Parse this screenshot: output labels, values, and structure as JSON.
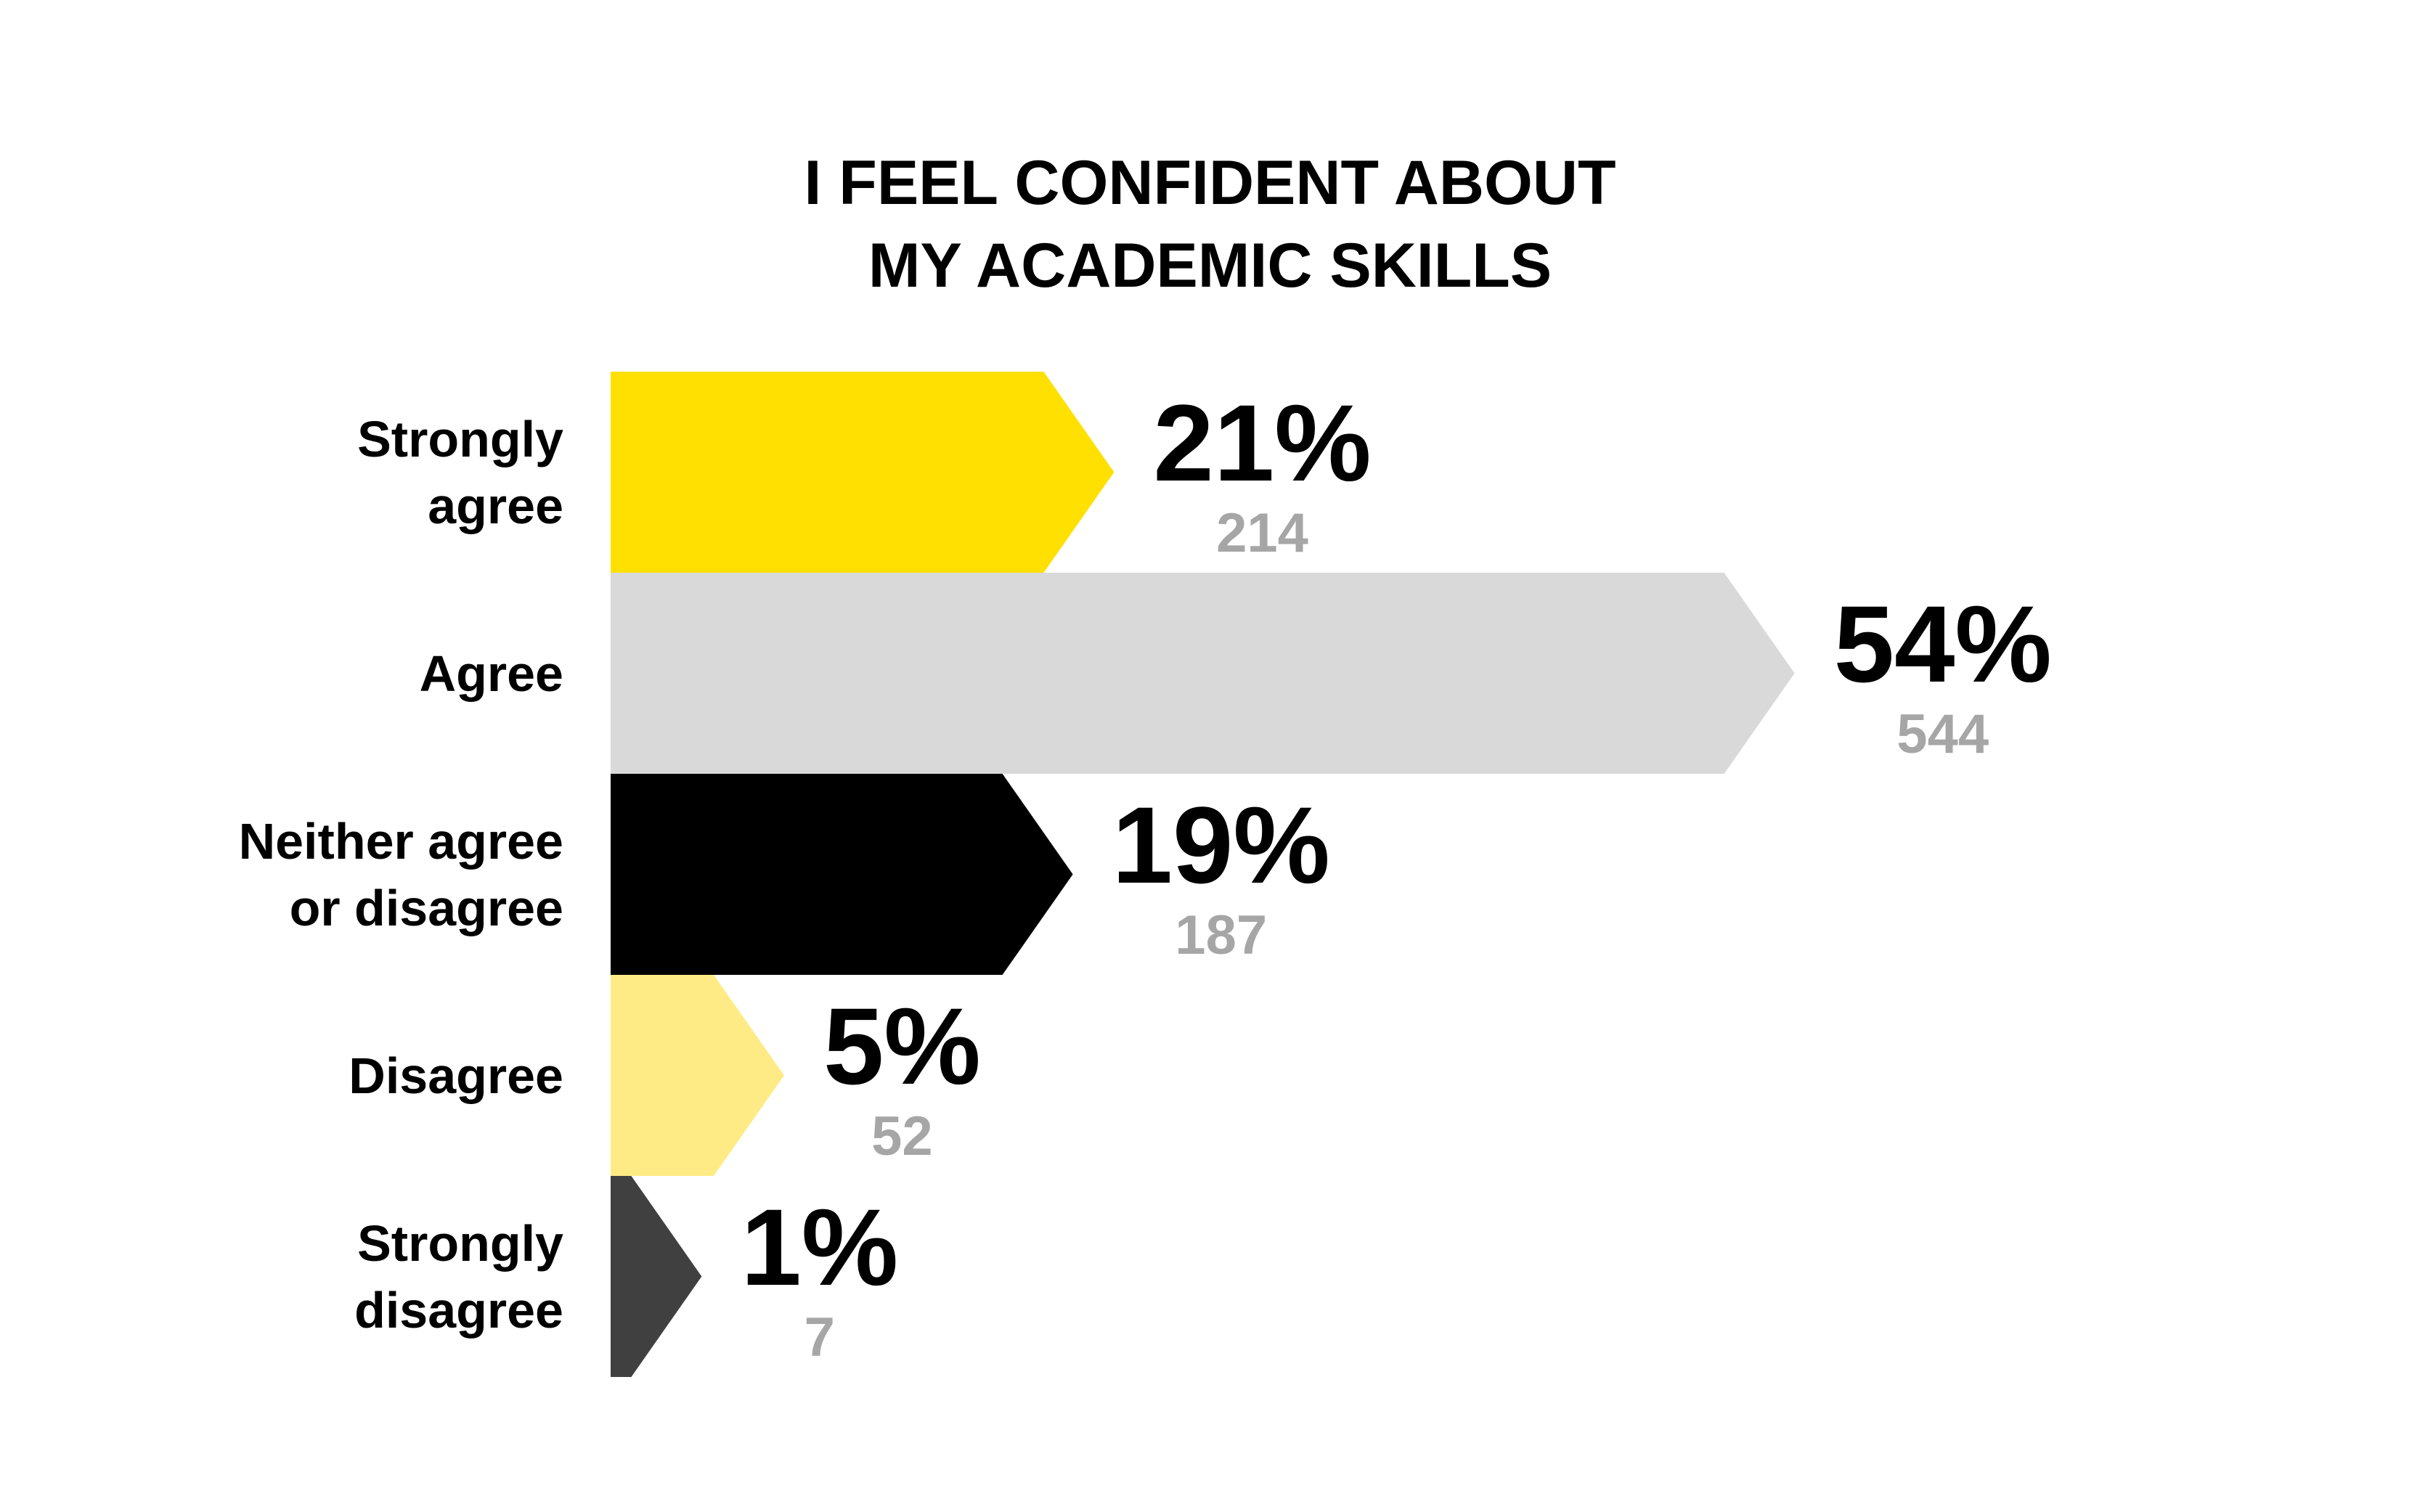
{
  "chart_data": {
    "type": "arrow-bar",
    "title": "I FEEL CONFIDENT ABOUT\nMY ACADEMIC SKILLS",
    "categories": [
      "Strongly\nagree",
      "Agree",
      "Neither agree\nor disagree",
      "Disagree",
      "Strongly\ndisagree"
    ],
    "values": [
      21,
      54,
      19,
      5,
      1
    ],
    "value_labels": [
      "21%",
      "54%",
      "19%",
      "5%",
      "1%"
    ],
    "counts": [
      214,
      544,
      187,
      52,
      7
    ],
    "colors": [
      "#FFE000",
      "#D9D9D9",
      "#000000",
      "#FFEB85",
      "#404040"
    ]
  }
}
